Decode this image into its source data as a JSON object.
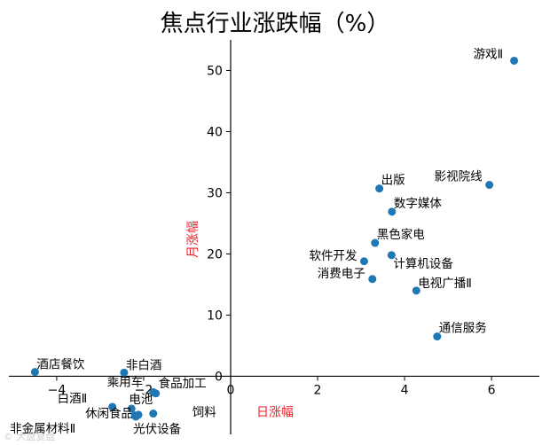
{
  "chart_data": {
    "type": "scatter",
    "title": "焦点行业涨跌幅（%）",
    "xlabel": "日涨幅",
    "ylabel": "月涨幅",
    "xlim": [
      -5.1,
      7.1
    ],
    "ylim": [
      -9.5,
      55
    ],
    "xticks": [
      -4,
      -2,
      0,
      2,
      4,
      6
    ],
    "yticks": [
      0,
      10,
      20,
      30,
      40,
      50
    ],
    "point_color": "#1f77b4",
    "axis_label_color": "#e8202a",
    "points": [
      {
        "label": "游戏Ⅱ",
        "x": 6.52,
        "y": 51.6
      },
      {
        "label": "影视院线",
        "x": 5.95,
        "y": 31.3
      },
      {
        "label": "出版",
        "x": 3.42,
        "y": 30.7
      },
      {
        "label": "数字媒体",
        "x": 3.71,
        "y": 26.9
      },
      {
        "label": "黑色家电",
        "x": 3.32,
        "y": 21.8
      },
      {
        "label": "软件开发",
        "x": 3.07,
        "y": 18.8
      },
      {
        "label": "计算机设备",
        "x": 3.7,
        "y": 19.8
      },
      {
        "label": "消费电子",
        "x": 3.26,
        "y": 15.9
      },
      {
        "label": "电视广播Ⅱ",
        "x": 4.27,
        "y": 14.0
      },
      {
        "label": "通信服务",
        "x": 4.75,
        "y": 6.5
      },
      {
        "label": "酒店餐饮",
        "x": -4.5,
        "y": 0.7
      },
      {
        "label": "非白酒",
        "x": -2.45,
        "y": 0.6
      },
      {
        "label": "乘用车",
        "x": -1.78,
        "y": -2.6
      },
      {
        "label": "食品加工",
        "x": -1.72,
        "y": -2.8
      },
      {
        "label": "白酒Ⅱ",
        "x": -2.72,
        "y": -5.0
      },
      {
        "label": "电池",
        "x": -2.28,
        "y": -5.3
      },
      {
        "label": "休闲食品",
        "x": -2.12,
        "y": -6.3
      },
      {
        "label": "饲料",
        "x": -1.78,
        "y": -6.1
      },
      {
        "label": "非金属材料Ⅱ",
        "x": -2.18,
        "y": -6.6
      },
      {
        "label": "光伏设备",
        "x": -2.2,
        "y": -6.4
      }
    ]
  },
  "watermark": "© 大盘复盘"
}
